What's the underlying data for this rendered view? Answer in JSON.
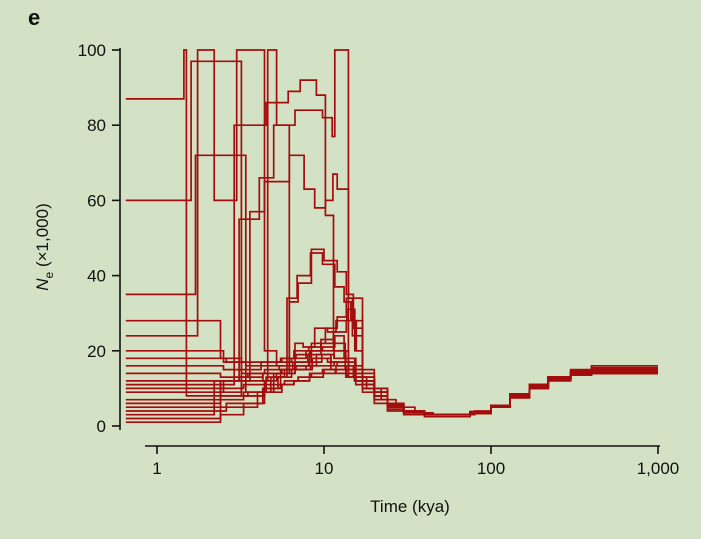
{
  "panel_label": "e",
  "colors": {
    "background": "#d3e2c5",
    "trace": "#a40d0d",
    "axis": "#111111"
  },
  "chart_data": {
    "type": "line",
    "xlabel": "Time (kya)",
    "ylabel_main": "N",
    "ylabel_subscript": "e",
    "ylabel_suffix": " (×1,000)",
    "xscale": "log",
    "xlim": [
      0.65,
      1000
    ],
    "ylim": [
      0,
      100
    ],
    "xticks": [
      {
        "value": 1,
        "label": "1"
      },
      {
        "value": 10,
        "label": "10"
      },
      {
        "value": 100,
        "label": "100"
      },
      {
        "value": 1000,
        "label": "1,000"
      }
    ],
    "yticks": [
      {
        "value": 0,
        "label": "0"
      },
      {
        "value": 20,
        "label": "20"
      },
      {
        "value": 40,
        "label": "40"
      },
      {
        "value": 60,
        "label": "60"
      },
      {
        "value": 80,
        "label": "80"
      },
      {
        "value": 100,
        "label": "100"
      }
    ],
    "grid": false,
    "legend": "none",
    "series": [
      {
        "x": [
          0.65,
          1.0,
          1.3,
          1.45,
          1.5,
          2.2,
          3.1,
          4.3,
          5.5,
          6.5,
          8.2,
          11.5,
          14,
          17,
          20,
          24,
          30,
          40,
          55,
          75,
          100,
          130,
          170,
          220,
          300,
          400,
          600,
          1000
        ],
        "y": [
          87,
          87,
          87,
          100,
          8,
          12,
          13,
          14,
          15,
          16,
          20,
          18,
          14,
          11,
          8,
          5,
          4,
          3,
          3,
          3.5,
          5.5,
          8,
          10.5,
          12.5,
          14,
          15,
          15,
          15
        ]
      },
      {
        "x": [
          0.65,
          1.0,
          1.5,
          1.6,
          2.5,
          3.2,
          4.4,
          5.2,
          6.7,
          8.5,
          11,
          14,
          17,
          20,
          24,
          30,
          40,
          55,
          75,
          100,
          130,
          170,
          220,
          300,
          400,
          600,
          1000
        ],
        "y": [
          60,
          60,
          60,
          97,
          97,
          8,
          12,
          14,
          16,
          18,
          17,
          15,
          11,
          8,
          5.5,
          4,
          3,
          3,
          3.8,
          5.5,
          8.5,
          11,
          13,
          14.5,
          15.5,
          15.5,
          15.5
        ]
      },
      {
        "x": [
          0.65,
          1.0,
          1.6,
          1.7,
          2.8,
          3.4,
          4.8,
          6.4,
          7.8,
          9,
          11,
          14,
          17,
          20,
          24,
          30,
          40,
          55,
          75,
          100,
          130,
          170,
          220,
          300,
          400,
          600,
          1000
        ],
        "y": [
          35,
          35,
          35,
          72,
          72,
          9,
          13,
          15,
          16,
          19,
          15,
          13,
          10,
          8,
          5,
          4,
          3,
          3,
          3.6,
          5,
          8,
          10,
          12.5,
          14,
          15,
          15,
          15
        ]
      },
      {
        "x": [
          0.65,
          1.0,
          1.7,
          1.75,
          2.2,
          2.9,
          3.0,
          4.4,
          5.2,
          6.7,
          8.5,
          10.5,
          12,
          15,
          18,
          22,
          27,
          35,
          45,
          60,
          80,
          100,
          130,
          170,
          220,
          300,
          400,
          600,
          1000
        ],
        "y": [
          24,
          24,
          24,
          100,
          60,
          60,
          100,
          20,
          16,
          15,
          18,
          17,
          16,
          13,
          10,
          7,
          5,
          3.5,
          3,
          3,
          4,
          5.5,
          8,
          10.5,
          12.5,
          13.5,
          14,
          14,
          14
        ]
      },
      {
        "x": [
          0.65,
          1.0,
          1.8,
          2.4,
          3.2,
          4.3,
          4.6,
          5.2,
          6.2,
          8.3,
          11.5,
          14,
          17,
          20,
          24,
          30,
          40,
          55,
          75,
          100,
          130,
          170,
          220,
          300,
          400,
          600,
          1000
        ],
        "y": [
          28,
          28,
          28,
          18,
          14,
          12,
          100,
          80,
          15,
          16,
          17,
          14,
          11,
          8,
          5,
          4,
          3,
          3,
          3.5,
          5,
          8.5,
          10.5,
          13,
          15,
          16,
          16,
          16
        ]
      },
      {
        "x": [
          0.65,
          1.0,
          1.8,
          2.6,
          2.9,
          3.3,
          4.5,
          6.1,
          7.2,
          8.4,
          9.0,
          10.2,
          11.4,
          14,
          17,
          20,
          24,
          30,
          40,
          55,
          75,
          100,
          130,
          170,
          220,
          300,
          400,
          600,
          1000
        ],
        "y": [
          11,
          11,
          11,
          11,
          80,
          80,
          86,
          89,
          92,
          92,
          88,
          56,
          20,
          16,
          12,
          9,
          6,
          4,
          3,
          3,
          3.8,
          5.5,
          8.5,
          11,
          13,
          14.5,
          15,
          15,
          15
        ]
      },
      {
        "x": [
          0.65,
          1.0,
          1.8,
          2.5,
          3.1,
          4.1,
          5.0,
          6.7,
          8.5,
          9.8,
          11.2,
          11.6,
          14,
          17,
          20,
          24,
          30,
          40,
          55,
          75,
          100,
          130,
          170,
          220,
          300,
          400,
          600,
          1000
        ],
        "y": [
          9,
          9,
          9,
          12,
          55,
          66,
          80,
          84,
          84,
          82,
          77,
          100,
          15,
          12,
          9,
          6,
          4,
          3,
          3,
          3.5,
          5,
          8,
          10,
          12.5,
          14,
          14.5,
          14.5,
          14.5
        ]
      },
      {
        "x": [
          0.65,
          1.0,
          1.8,
          2.4,
          3.6,
          4.4,
          6.2,
          7.6,
          8.8,
          10.2,
          11.3,
          12,
          14,
          17,
          20,
          24,
          30,
          40,
          55,
          75,
          100,
          130,
          170,
          220,
          300,
          400,
          600,
          1000
        ],
        "y": [
          5,
          5,
          5,
          12,
          57,
          65,
          72,
          63,
          58,
          60,
          67,
          63,
          34,
          12,
          8,
          5,
          4,
          3,
          3,
          3.6,
          5.5,
          8.5,
          11,
          13,
          14.5,
          15,
          15,
          15
        ]
      },
      {
        "x": [
          0.65,
          1.0,
          1.6,
          2.6,
          4.3,
          5.3,
          6.0,
          6.9,
          8.3,
          9.8,
          11.6,
          13.2,
          14.5,
          17,
          20,
          24,
          30,
          40,
          55,
          75,
          100,
          130,
          170,
          220,
          300,
          400,
          600,
          1000
        ],
        "y": [
          4,
          4,
          4,
          6,
          10,
          13,
          34,
          40,
          46,
          43,
          37,
          33,
          28,
          11,
          8,
          5,
          4,
          3,
          3,
          3.5,
          5,
          8,
          10.5,
          12.5,
          14,
          14,
          14,
          14
        ]
      },
      {
        "x": [
          0.65,
          1.0,
          1.6,
          2.4,
          4.0,
          5.0,
          6.2,
          7.0,
          8.4,
          10.0,
          12.0,
          13.6,
          15,
          17,
          20,
          24,
          30,
          40,
          55,
          75,
          100,
          130,
          170,
          220,
          300,
          400,
          600,
          1000
        ],
        "y": [
          2,
          2,
          2,
          5,
          9,
          14,
          33,
          38,
          47,
          44,
          41,
          35,
          26,
          13,
          9,
          5.5,
          4,
          3,
          3,
          3.8,
          5.5,
          8.5,
          10.5,
          13,
          14.5,
          15,
          15,
          15
        ]
      },
      {
        "x": [
          0.65,
          1.0,
          1.8,
          2.2,
          4.4,
          5.5,
          6.7,
          7.5,
          8.8,
          10.5,
          11.8,
          13.7,
          15.3,
          17,
          20,
          24,
          30,
          40,
          55,
          75,
          100,
          130,
          170,
          220,
          300,
          400,
          600,
          1000
        ],
        "y": [
          3,
          3,
          3,
          8,
          10,
          14,
          22,
          21,
          26,
          25,
          28,
          31,
          20,
          14,
          10,
          6,
          4,
          3,
          3,
          3.5,
          5,
          7.5,
          10,
          12.5,
          13.5,
          14,
          14,
          14
        ]
      },
      {
        "x": [
          0.65,
          1.0,
          1.8,
          2.4,
          3.3,
          4.5,
          5.8,
          6.7,
          8.4,
          10.2,
          12.0,
          13.6,
          14.8,
          17,
          20,
          24,
          30,
          40,
          55,
          75,
          100,
          130,
          170,
          220,
          300,
          400,
          600,
          1000
        ],
        "y": [
          12,
          12,
          12,
          10,
          11,
          13,
          15,
          17,
          22,
          26,
          29,
          34,
          24,
          13,
          9,
          5.5,
          4,
          3,
          3,
          3.6,
          5.5,
          8,
          11,
          13,
          14.5,
          14.5,
          14.5,
          14.5
        ]
      },
      {
        "x": [
          0.65,
          1.0,
          1.8,
          2.4,
          3.5,
          4.4,
          5.4,
          6.5,
          8.0,
          9.6,
          11.4,
          13.6,
          15.6,
          17,
          20,
          24,
          30,
          40,
          55,
          75,
          100,
          130,
          170,
          220,
          300,
          400,
          600,
          1000
        ],
        "y": [
          14,
          14,
          14,
          13,
          14,
          15,
          16,
          17,
          19,
          22,
          25,
          28,
          20,
          15,
          10,
          6,
          4,
          3,
          3,
          3.5,
          5,
          8,
          10.5,
          12.5,
          14,
          14,
          14,
          14
        ]
      },
      {
        "x": [
          0.65,
          1.0,
          1.8,
          2.5,
          3.3,
          4.2,
          5.2,
          6.4,
          7.8,
          9.6,
          11.6,
          13.2,
          15.5,
          17,
          20,
          24,
          30,
          40,
          55,
          75,
          100,
          130,
          170,
          220,
          300,
          400,
          600,
          1000
        ],
        "y": [
          16,
          16,
          16,
          15,
          15,
          16,
          17,
          18,
          20,
          22,
          24,
          18,
          14,
          12,
          9,
          6,
          4,
          3,
          3,
          3.8,
          5.5,
          8,
          10.5,
          13,
          14.5,
          15,
          15,
          15
        ]
      },
      {
        "x": [
          0.65,
          1.0,
          1.8,
          2.6,
          3.4,
          4.2,
          5.5,
          6.6,
          8.1,
          9.6,
          11.5,
          13.5,
          15.5,
          17,
          20,
          24,
          30,
          40,
          55,
          75,
          100,
          130,
          170,
          220,
          300,
          400,
          600,
          1000
        ],
        "y": [
          18,
          18,
          18,
          17,
          16,
          17,
          18,
          20,
          21,
          23,
          20,
          17,
          13,
          11,
          8,
          5,
          4,
          3,
          3,
          3.5,
          5,
          8,
          10,
          12.5,
          14,
          14.5,
          14.5,
          14.5
        ]
      },
      {
        "x": [
          0.65,
          1.0,
          1.8,
          2.4,
          3.2,
          4.3,
          5.6,
          6.8,
          8.1,
          9.7,
          11.5,
          13.4,
          15.2,
          17,
          20,
          24,
          30,
          40,
          55,
          75,
          100,
          130,
          170,
          220,
          300,
          400,
          600,
          1000
        ],
        "y": [
          7,
          7,
          7,
          9,
          12,
          14,
          15,
          16,
          17,
          19,
          18,
          15,
          12,
          10,
          7,
          5,
          3.5,
          3,
          3,
          3.5,
          5,
          8,
          10.5,
          12.5,
          14,
          15,
          15,
          15
        ]
      },
      {
        "x": [
          0.65,
          1.0,
          1.8,
          2.4,
          3.3,
          4.4,
          5.6,
          6.6,
          8.2,
          9.8,
          11.8,
          13.8,
          15.5,
          17,
          20,
          24,
          30,
          40,
          55,
          75,
          100,
          130,
          170,
          220,
          300,
          400,
          600,
          1000
        ],
        "y": [
          1,
          1,
          1,
          3,
          6,
          9,
          11,
          12,
          14,
          15,
          14,
          13,
          11,
          9,
          6,
          4,
          3,
          2.5,
          2.5,
          3.3,
          5,
          7.5,
          10,
          12,
          13.5,
          14,
          14,
          14
        ]
      },
      {
        "x": [
          0.65,
          1.0,
          1.8,
          2.4,
          3.5,
          4.5,
          5.8,
          7.0,
          8.4,
          10.0,
          11.8,
          13.6,
          15.5,
          17,
          20,
          24,
          30,
          40,
          55,
          75,
          100,
          130,
          170,
          220,
          300,
          400,
          600,
          1000
        ],
        "y": [
          10,
          10,
          10,
          8,
          9,
          11,
          12,
          13,
          14,
          15,
          16,
          14,
          12,
          10,
          7,
          5,
          3.5,
          3,
          3,
          3.8,
          5.5,
          8.5,
          11,
          13,
          14.5,
          14.5,
          14.5,
          14.5
        ]
      },
      {
        "x": [
          0.65,
          1.0,
          1.8,
          2.4,
          3.3,
          4.3,
          5.5,
          6.6,
          8.2,
          9.9,
          11.7,
          13.5,
          15.5,
          17,
          20,
          24,
          30,
          40,
          55,
          75,
          100,
          130,
          170,
          220,
          300,
          400,
          600,
          1000
        ],
        "y": [
          6,
          6,
          6,
          7,
          9,
          10,
          11,
          12,
          13,
          14,
          15,
          13,
          12,
          10,
          7,
          4.5,
          3.5,
          3,
          3,
          3.5,
          5,
          7.5,
          10,
          12.5,
          14,
          14,
          14,
          14
        ]
      },
      {
        "x": [
          0.65,
          1.0,
          1.8,
          2.5,
          3.4,
          4.4,
          5.6,
          6.8,
          8.2,
          9.8,
          11.6,
          13.4,
          15.3,
          17,
          20,
          24,
          30,
          40,
          55,
          75,
          100,
          130,
          170,
          220,
          300,
          400,
          600,
          1000
        ],
        "y": [
          20,
          20,
          20,
          17,
          17,
          17,
          18,
          19,
          20,
          21,
          22,
          18,
          15,
          12,
          9,
          6,
          4,
          3,
          3,
          3.5,
          5,
          8,
          10.5,
          12.5,
          14,
          14.5,
          14.5,
          14.5
        ]
      }
    ]
  }
}
